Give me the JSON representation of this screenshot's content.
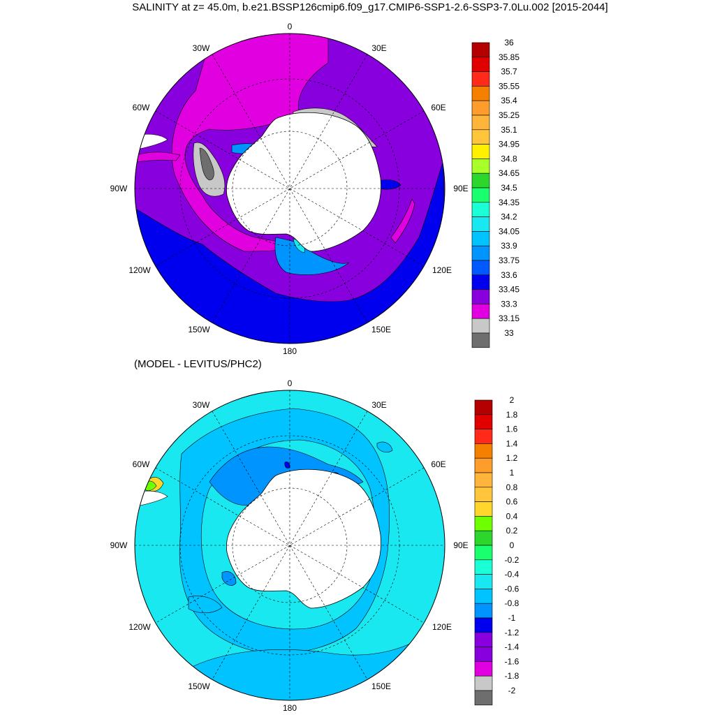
{
  "top_panel": {
    "title": "SALINITY at z=  45.0m, b.e21.BSSP126cmip6.f09_g17.CMIP6-SSP1-2.6-SSP3-7.0Lu.002 [2015-2044]",
    "lon_labels": {
      "n": "0",
      "nw": "30W",
      "ne": "30E",
      "wnw": "60W",
      "ene": "60E",
      "w": "90W",
      "e": "90E",
      "wsw": "120W",
      "ese": "120E",
      "ssw": "150W",
      "sse": "150E",
      "s": "180"
    },
    "colorbar": {
      "levels": [
        "36",
        "35.85",
        "35.7",
        "35.55",
        "35.4",
        "35.25",
        "35.1",
        "34.95",
        "34.8",
        "34.65",
        "34.5",
        "34.35",
        "34.2",
        "34.05",
        "33.9",
        "33.75",
        "33.6",
        "33.45",
        "33.3",
        "33.15",
        "33"
      ],
      "colors": [
        "#b40000",
        "#e00000",
        "#ff2a1a",
        "#f58000",
        "#ff9d2c",
        "#ffb43c",
        "#ffc63c",
        "#fff000",
        "#a8ff2a",
        "#2cd62c",
        "#1aff6e",
        "#1affd6",
        "#1ae8f0",
        "#00c3ff",
        "#0094ff",
        "#0059ff",
        "#0000ee",
        "#8800dd",
        "#e000e0",
        "#c8c8c8",
        "#6e6e6e"
      ]
    }
  },
  "bottom_panel": {
    "subtitle": "(MODEL - LEVITUS/PHC2)",
    "lon_labels": {
      "n": "0",
      "nw": "30W",
      "ne": "30E",
      "wnw": "60W",
      "ene": "60E",
      "w": "90W",
      "e": "90E",
      "wsw": "120W",
      "ese": "120E",
      "ssw": "150W",
      "sse": "150E",
      "s": "180"
    },
    "colorbar": {
      "levels": [
        "2",
        "1.8",
        "1.6",
        "1.4",
        "1.2",
        "1",
        "0.8",
        "0.6",
        "0.4",
        "0.2",
        "0",
        "-0.2",
        "-0.4",
        "-0.6",
        "-0.8",
        "-1",
        "-1.2",
        "-1.4",
        "-1.6",
        "-1.8",
        "-2"
      ],
      "colors": [
        "#b40000",
        "#e00000",
        "#ff2a1a",
        "#f58000",
        "#ff9d2c",
        "#ffb43c",
        "#ffc63c",
        "#ffd72c",
        "#6eff00",
        "#2cd62c",
        "#1aff6e",
        "#1affd6",
        "#1ae8f0",
        "#00c3ff",
        "#0094ff",
        "#0000ee",
        "#8800dd",
        "#8800dd",
        "#e000e0",
        "#c8c8c8",
        "#6e6e6e"
      ]
    }
  }
}
